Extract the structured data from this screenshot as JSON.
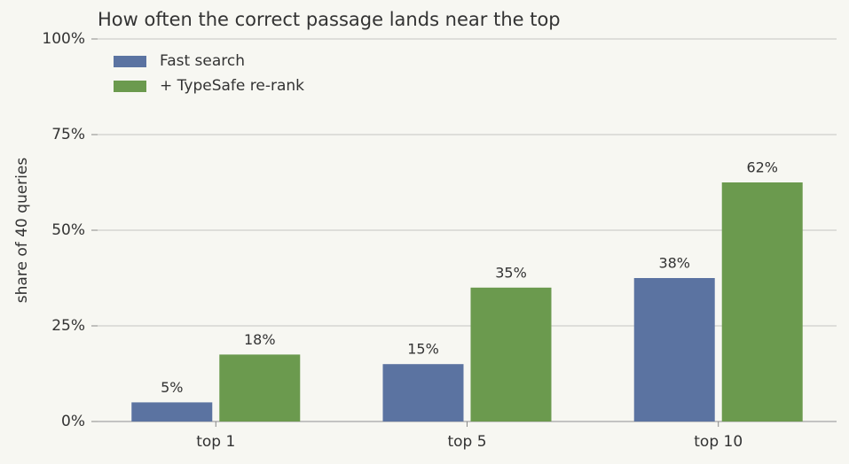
{
  "chart_data": {
    "type": "bar",
    "title": "How often the correct passage lands near the top",
    "y_label": "share of 40 queries",
    "categories": [
      "top 1",
      "top 5",
      "top 10"
    ],
    "series": [
      {
        "name": "Fast search",
        "color": "#5b73a1",
        "values": [
          5,
          15,
          37.5
        ],
        "value_labels": [
          "5%",
          "15%",
          "38%"
        ]
      },
      {
        "name": "+ TypeSafe re-rank",
        "color": "#6b9a4e",
        "values": [
          17.5,
          35,
          62.5
        ],
        "value_labels": [
          "18%",
          "35%",
          "62%"
        ]
      }
    ],
    "ylim": [
      0,
      100
    ],
    "yticks": [
      {
        "value": 0,
        "label": "0%"
      },
      {
        "value": 25,
        "label": "25%"
      },
      {
        "value": 50,
        "label": "50%"
      },
      {
        "value": 75,
        "label": "75%"
      },
      {
        "value": 100,
        "label": "100%"
      }
    ],
    "grid": true,
    "legend": "upper left"
  }
}
